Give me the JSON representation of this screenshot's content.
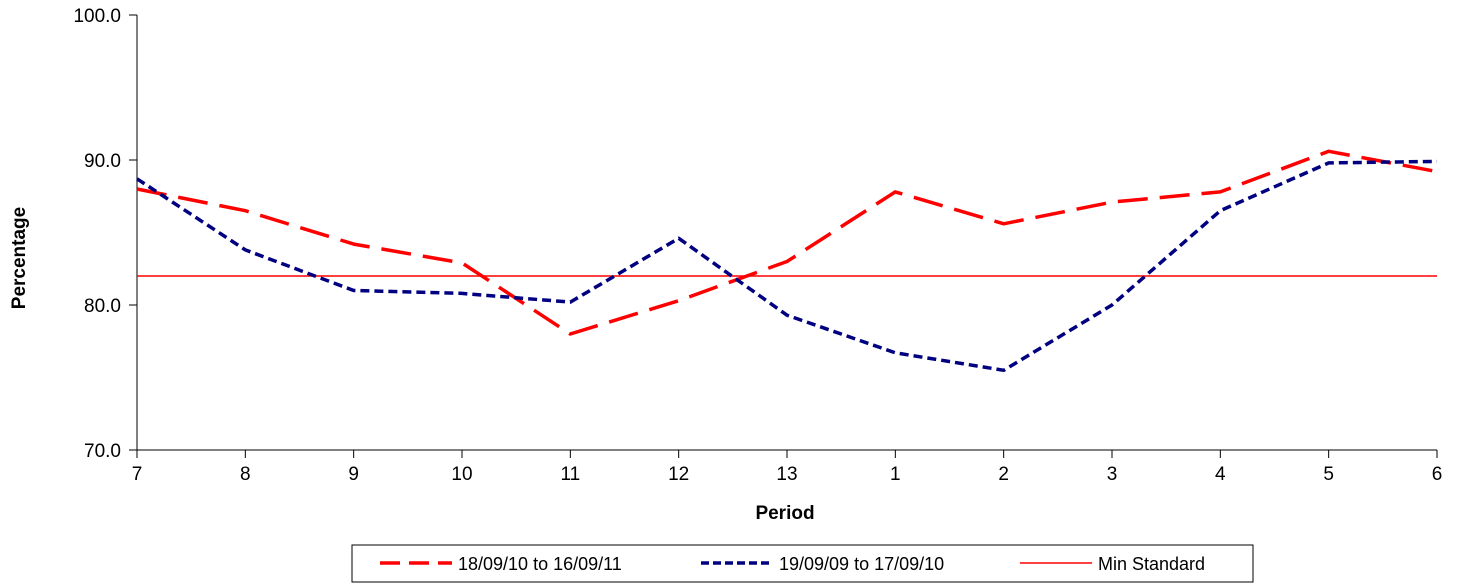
{
  "chart_data": {
    "type": "line",
    "categories": [
      "7",
      "8",
      "9",
      "10",
      "11",
      "12",
      "13",
      "1",
      "2",
      "3",
      "4",
      "5",
      "6"
    ],
    "xlabel": "Period",
    "ylabel": "Percentage",
    "ylim": [
      70,
      100
    ],
    "yticks": [
      "70.0",
      "80.0",
      "90.0",
      "100.0"
    ],
    "grid": false,
    "legend_position": "bottom",
    "series": [
      {
        "name": "18/09/10 to 16/09/11",
        "color": "#ff0000",
        "style": "long-dash",
        "values": [
          88.0,
          86.5,
          84.2,
          82.9,
          78.0,
          80.3,
          83.0,
          87.8,
          85.6,
          87.1,
          87.8,
          90.6,
          89.2
        ]
      },
      {
        "name": "19/09/09 to 17/09/10",
        "color": "#000080",
        "style": "short-dash",
        "values": [
          88.7,
          83.8,
          81.0,
          80.8,
          80.2,
          84.6,
          79.3,
          76.7,
          75.5,
          80.0,
          86.5,
          89.8,
          89.9
        ]
      },
      {
        "name": "Min Standard",
        "color": "#ff0000",
        "style": "solid",
        "values": [
          82.0,
          82.0,
          82.0,
          82.0,
          82.0,
          82.0,
          82.0,
          82.0,
          82.0,
          82.0,
          82.0,
          82.0,
          82.0
        ]
      }
    ]
  }
}
